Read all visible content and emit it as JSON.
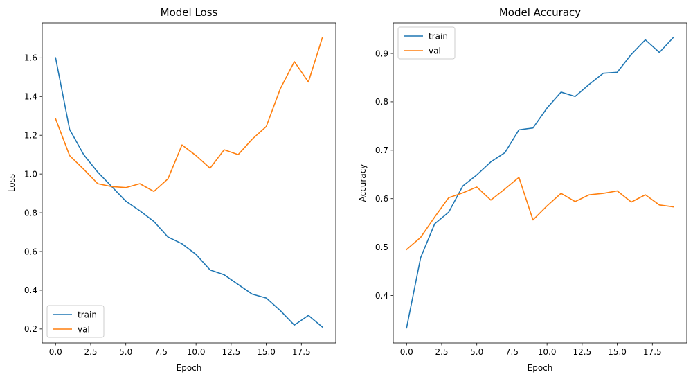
{
  "colors": {
    "train": "#1f77b4",
    "val": "#ff7f0e"
  },
  "chart_data": [
    {
      "type": "line",
      "title": "Model Loss",
      "xlabel": "Epoch",
      "ylabel": "Loss",
      "xlim": [
        -0.95,
        19.95
      ],
      "ylim": [
        0.128,
        1.78
      ],
      "xticks": [
        0.0,
        2.5,
        5.0,
        7.5,
        10.0,
        12.5,
        15.0,
        17.5
      ],
      "xtick_labels": [
        "0.0",
        "2.5",
        "5.0",
        "7.5",
        "10.0",
        "12.5",
        "15.0",
        "17.5"
      ],
      "yticks": [
        0.2,
        0.4,
        0.6,
        0.8,
        1.0,
        1.2,
        1.4,
        1.6
      ],
      "ytick_labels": [
        "0.2",
        "0.4",
        "0.6",
        "0.8",
        "1.0",
        "1.2",
        "1.4",
        "1.6"
      ],
      "legend_position": "lower-left",
      "grid": false,
      "x": [
        0,
        1,
        2,
        3,
        4,
        5,
        6,
        7,
        8,
        9,
        10,
        11,
        12,
        13,
        14,
        15,
        16,
        17,
        18,
        19
      ],
      "series": [
        {
          "name": "train",
          "values": [
            1.6,
            1.23,
            1.1,
            1.01,
            0.935,
            0.86,
            0.81,
            0.755,
            0.675,
            0.64,
            0.585,
            0.505,
            0.48,
            0.43,
            0.38,
            0.36,
            0.295,
            0.22,
            0.27,
            0.21
          ]
        },
        {
          "name": "val",
          "values": [
            1.285,
            1.095,
            1.025,
            0.95,
            0.935,
            0.93,
            0.95,
            0.91,
            0.975,
            1.15,
            1.095,
            1.03,
            1.125,
            1.1,
            1.18,
            1.245,
            1.44,
            1.58,
            1.475,
            1.705
          ]
        }
      ]
    },
    {
      "type": "line",
      "title": "Model Accuracy",
      "xlabel": "Epoch",
      "ylabel": "Accuracy",
      "xlim": [
        -0.95,
        19.95
      ],
      "ylim": [
        0.302,
        0.963
      ],
      "xticks": [
        0.0,
        2.5,
        5.0,
        7.5,
        10.0,
        12.5,
        15.0,
        17.5
      ],
      "xtick_labels": [
        "0.0",
        "2.5",
        "5.0",
        "7.5",
        "10.0",
        "12.5",
        "15.0",
        "17.5"
      ],
      "yticks": [
        0.4,
        0.5,
        0.6,
        0.7,
        0.8,
        0.9
      ],
      "ytick_labels": [
        "0.4",
        "0.5",
        "0.6",
        "0.7",
        "0.8",
        "0.9"
      ],
      "legend_position": "upper-left",
      "grid": false,
      "x": [
        0,
        1,
        2,
        3,
        4,
        5,
        6,
        7,
        8,
        9,
        10,
        11,
        12,
        13,
        14,
        15,
        16,
        17,
        18,
        19
      ],
      "series": [
        {
          "name": "train",
          "values": [
            0.333,
            0.478,
            0.548,
            0.572,
            0.626,
            0.649,
            0.676,
            0.695,
            0.742,
            0.746,
            0.787,
            0.82,
            0.811,
            0.836,
            0.859,
            0.861,
            0.898,
            0.928,
            0.902,
            0.933
          ]
        },
        {
          "name": "val",
          "values": [
            0.495,
            0.52,
            0.562,
            0.602,
            0.612,
            0.624,
            0.597,
            0.62,
            0.644,
            0.556,
            0.585,
            0.611,
            0.594,
            0.608,
            0.611,
            0.616,
            0.593,
            0.608,
            0.587,
            0.583
          ]
        }
      ]
    }
  ]
}
